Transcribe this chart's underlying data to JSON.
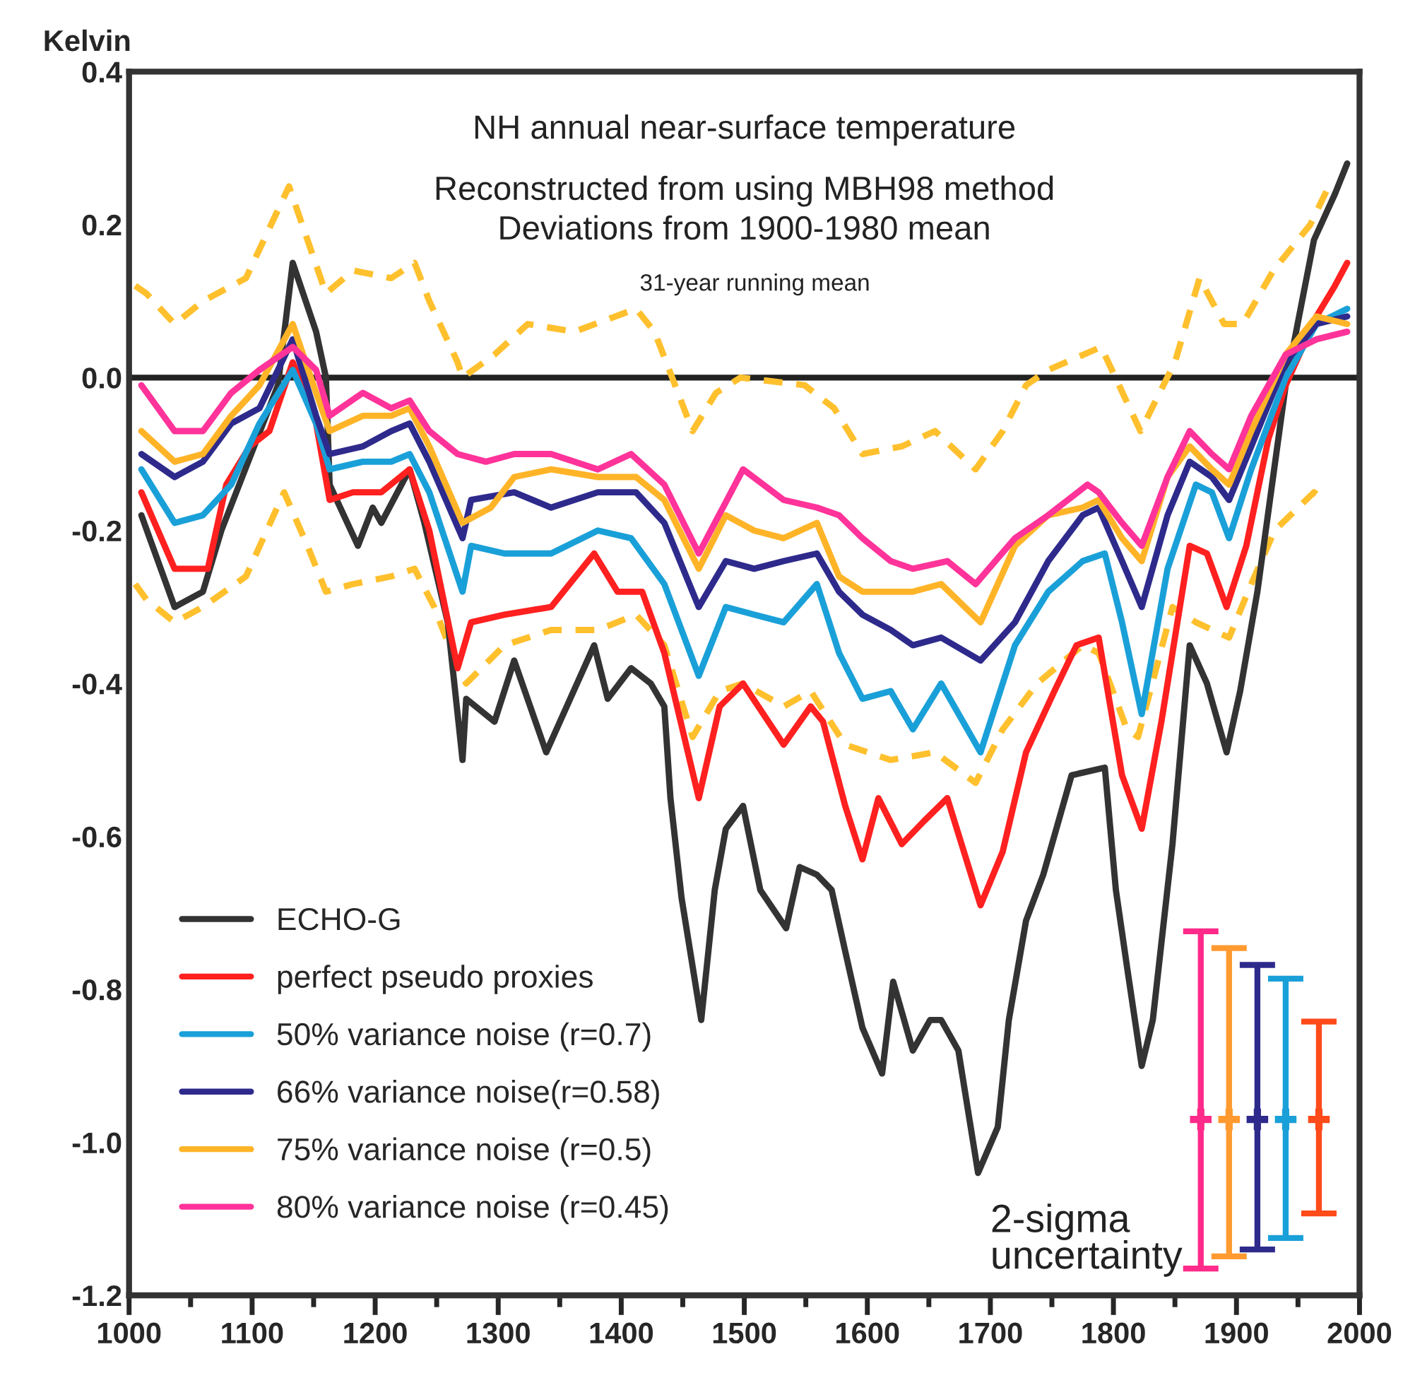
{
  "chart_data": {
    "type": "line",
    "title": "NH annual near-surface temperature",
    "subtitle": "Reconstructed from using MBH98 method\nDeviations from 1900-1980 mean",
    "ylabel": "Kelvin",
    "annotations": [
      "31-year running mean",
      "2-sigma\nuncertainty"
    ],
    "xlim": [
      1000,
      2000
    ],
    "ylim": [
      -1.2,
      0.4
    ],
    "xticks": [
      1000,
      {
        "value": 1050,
        "label": null
      },
      1100,
      {
        "value": 1150,
        "label": null
      },
      1200,
      {
        "value": 1250,
        "label": null
      },
      1300,
      {
        "value": 1350,
        "label": null
      },
      1400,
      {
        "value": 1450,
        "label": null
      },
      1500,
      {
        "value": 1550,
        "label": null
      },
      1600,
      {
        "value": 1650,
        "label": null
      },
      1700,
      {
        "value": 1750,
        "label": null
      },
      1800,
      {
        "value": 1850,
        "label": null
      },
      1900,
      {
        "value": 1950,
        "label": null
      },
      2000
    ],
    "yticks": [
      {
        "value": -1.2,
        "label": "-1.2"
      },
      {
        "value": -1.0,
        "label": "-1.0"
      },
      {
        "value": -0.8,
        "label": "-0.8"
      },
      {
        "value": -0.6,
        "label": "-0.6"
      },
      {
        "value": -0.4,
        "label": "-0.4"
      },
      {
        "value": -0.2,
        "label": "-0.2"
      },
      {
        "value": 0.0,
        "label": "0.0"
      },
      0.2,
      0.4
    ],
    "ref_lines": [
      {
        "axis": "y",
        "value": 0,
        "color": "#222222",
        "line_style": "solid"
      }
    ],
    "grid": false,
    "legend": "bottom left",
    "line_style": "solid",
    "marker": "none",
    "series": [
      {
        "color": "#ffc02e",
        "line_style": "dashed",
        "x": [
          1005,
          1014,
          1037,
          1060,
          1095,
          1130,
          1145,
          1160,
          1182,
          1213,
          1232,
          1244,
          1267,
          1271,
          1297,
          1324,
          1362,
          1412,
          1427,
          1439,
          1458,
          1477,
          1497,
          1549,
          1573,
          1596,
          1628,
          1655,
          1688,
          1710,
          1729,
          1747,
          1790,
          1822,
          1850,
          1870,
          1890,
          1905,
          1930,
          1960,
          1975
        ],
        "values": [
          0.12,
          0.11,
          0.07,
          0.1,
          0.13,
          0.25,
          0.18,
          0.11,
          0.14,
          0.13,
          0.15,
          0.1,
          0.02,
          0.0,
          0.03,
          0.07,
          0.06,
          0.09,
          0.06,
          0.01,
          -0.07,
          -0.02,
          0.0,
          -0.01,
          -0.04,
          -0.1,
          -0.09,
          -0.07,
          -0.12,
          -0.07,
          -0.01,
          0.01,
          0.04,
          -0.07,
          0.02,
          0.13,
          0.07,
          0.07,
          0.14,
          0.2,
          0.25
        ]
      },
      {
        "color": "#ffc02e",
        "line_style": "dashed",
        "x": [
          1005,
          1014,
          1037,
          1060,
          1095,
          1126,
          1145,
          1160,
          1182,
          1213,
          1232,
          1248,
          1267,
          1274,
          1305,
          1343,
          1381,
          1412,
          1435,
          1458,
          1480,
          1499,
          1532,
          1554,
          1582,
          1619,
          1655,
          1688,
          1710,
          1738,
          1775,
          1788,
          1811,
          1820,
          1848,
          1867,
          1894,
          1912,
          1931,
          1963,
          1972
        ],
        "values": [
          -0.27,
          -0.29,
          -0.32,
          -0.3,
          -0.26,
          -0.15,
          -0.22,
          -0.28,
          -0.27,
          -0.26,
          -0.25,
          -0.3,
          -0.38,
          -0.4,
          -0.35,
          -0.33,
          -0.33,
          -0.31,
          -0.35,
          -0.47,
          -0.41,
          -0.4,
          -0.43,
          -0.41,
          -0.48,
          -0.5,
          -0.49,
          -0.53,
          -0.46,
          -0.4,
          -0.35,
          -0.36,
          -0.46,
          -0.47,
          -0.3,
          -0.32,
          -0.34,
          -0.27,
          -0.2,
          -0.15,
          -0.16
        ]
      },
      {
        "name": "ECHO-G",
        "color": "#333333",
        "x": [
          1010,
          1037,
          1060,
          1075,
          1121,
          1133,
          1152,
          1160,
          1163,
          1186,
          1198,
          1205,
          1228,
          1240,
          1259,
          1271,
          1274,
          1297,
          1313,
          1339,
          1378,
          1389,
          1408,
          1424,
          1435,
          1440,
          1449,
          1465,
          1476,
          1485,
          1499,
          1513,
          1534,
          1545,
          1559,
          1571,
          1582,
          1596,
          1612,
          1621,
          1637,
          1651,
          1660,
          1674,
          1690,
          1706,
          1715,
          1729,
          1743,
          1766,
          1793,
          1802,
          1811,
          1823,
          1832,
          1848,
          1862,
          1876,
          1892,
          1903,
          1917,
          1940,
          1963,
          1980,
          1990
        ],
        "values": [
          -0.18,
          -0.3,
          -0.28,
          -0.2,
          -0.01,
          0.15,
          0.06,
          0.0,
          -0.14,
          -0.22,
          -0.17,
          -0.19,
          -0.12,
          -0.19,
          -0.32,
          -0.5,
          -0.42,
          -0.45,
          -0.37,
          -0.49,
          -0.35,
          -0.42,
          -0.38,
          -0.4,
          -0.43,
          -0.55,
          -0.68,
          -0.84,
          -0.67,
          -0.59,
          -0.56,
          -0.67,
          -0.72,
          -0.64,
          -0.65,
          -0.67,
          -0.75,
          -0.85,
          -0.91,
          -0.79,
          -0.88,
          -0.84,
          -0.84,
          -0.88,
          -1.04,
          -0.98,
          -0.84,
          -0.71,
          -0.65,
          -0.52,
          -0.51,
          -0.67,
          -0.77,
          -0.9,
          -0.84,
          -0.61,
          -0.35,
          -0.4,
          -0.49,
          -0.41,
          -0.28,
          -0.01,
          0.18,
          0.24,
          0.28
        ]
      },
      {
        "name": "perfect pseudo proxies",
        "color": "#ff2020",
        "x": [
          1010,
          1037,
          1064,
          1079,
          1098,
          1114,
          1133,
          1152,
          1163,
          1182,
          1205,
          1228,
          1244,
          1267,
          1278,
          1305,
          1343,
          1378,
          1397,
          1417,
          1435,
          1463,
          1480,
          1499,
          1532,
          1554,
          1564,
          1582,
          1596,
          1609,
          1628,
          1646,
          1665,
          1692,
          1710,
          1729,
          1752,
          1770,
          1788,
          1807,
          1823,
          1839,
          1862,
          1876,
          1892,
          1908,
          1926,
          1940,
          1965,
          1980,
          1990
        ],
        "values": [
          -0.15,
          -0.25,
          -0.25,
          -0.14,
          -0.09,
          -0.07,
          0.02,
          -0.06,
          -0.16,
          -0.15,
          -0.15,
          -0.12,
          -0.2,
          -0.38,
          -0.32,
          -0.31,
          -0.3,
          -0.23,
          -0.28,
          -0.28,
          -0.36,
          -0.55,
          -0.43,
          -0.4,
          -0.48,
          -0.43,
          -0.45,
          -0.56,
          -0.63,
          -0.55,
          -0.61,
          -0.58,
          -0.55,
          -0.69,
          -0.62,
          -0.49,
          -0.41,
          -0.35,
          -0.34,
          -0.52,
          -0.59,
          -0.45,
          -0.22,
          -0.23,
          -0.3,
          -0.22,
          -0.08,
          -0.01,
          0.08,
          0.12,
          0.15
        ]
      },
      {
        "name": "50% variance noise (r=0.7)",
        "color": "#1aa0d8",
        "x": [
          1010,
          1037,
          1060,
          1083,
          1106,
          1133,
          1152,
          1163,
          1190,
          1213,
          1228,
          1244,
          1271,
          1278,
          1305,
          1343,
          1381,
          1408,
          1435,
          1463,
          1485,
          1508,
          1532,
          1559,
          1577,
          1596,
          1619,
          1637,
          1660,
          1692,
          1720,
          1747,
          1775,
          1793,
          1807,
          1823,
          1844,
          1867,
          1880,
          1894,
          1912,
          1940,
          1965,
          1990
        ],
        "values": [
          -0.12,
          -0.19,
          -0.18,
          -0.14,
          -0.06,
          0.01,
          -0.06,
          -0.12,
          -0.11,
          -0.11,
          -0.1,
          -0.15,
          -0.28,
          -0.22,
          -0.23,
          -0.23,
          -0.2,
          -0.21,
          -0.27,
          -0.39,
          -0.3,
          -0.31,
          -0.32,
          -0.27,
          -0.36,
          -0.42,
          -0.41,
          -0.46,
          -0.4,
          -0.49,
          -0.35,
          -0.28,
          -0.24,
          -0.23,
          -0.32,
          -0.44,
          -0.25,
          -0.14,
          -0.15,
          -0.21,
          -0.12,
          0.0,
          0.07,
          0.09
        ]
      },
      {
        "name": "66% variance noise(r=0.58)",
        "color": "#2e2a8c",
        "x": [
          1010,
          1037,
          1060,
          1083,
          1106,
          1133,
          1152,
          1163,
          1190,
          1213,
          1228,
          1244,
          1271,
          1278,
          1313,
          1343,
          1381,
          1412,
          1435,
          1463,
          1485,
          1508,
          1532,
          1559,
          1577,
          1596,
          1619,
          1637,
          1660,
          1692,
          1720,
          1747,
          1775,
          1788,
          1807,
          1823,
          1844,
          1862,
          1880,
          1894,
          1912,
          1940,
          1965,
          1990
        ],
        "values": [
          -0.1,
          -0.13,
          -0.11,
          -0.06,
          -0.04,
          0.05,
          -0.05,
          -0.1,
          -0.09,
          -0.07,
          -0.06,
          -0.11,
          -0.21,
          -0.16,
          -0.15,
          -0.17,
          -0.15,
          -0.15,
          -0.19,
          -0.3,
          -0.24,
          -0.25,
          -0.24,
          -0.23,
          -0.28,
          -0.31,
          -0.33,
          -0.35,
          -0.34,
          -0.37,
          -0.32,
          -0.24,
          -0.18,
          -0.17,
          -0.24,
          -0.3,
          -0.18,
          -0.11,
          -0.13,
          -0.16,
          -0.09,
          0.02,
          0.07,
          0.08
        ]
      },
      {
        "name": "75% variance noise (r=0.5)",
        "color": "#ffb428",
        "x": [
          1010,
          1037,
          1060,
          1083,
          1106,
          1133,
          1152,
          1163,
          1190,
          1213,
          1228,
          1244,
          1271,
          1294,
          1313,
          1343,
          1381,
          1412,
          1435,
          1463,
          1485,
          1508,
          1532,
          1559,
          1577,
          1596,
          1619,
          1637,
          1660,
          1692,
          1720,
          1747,
          1775,
          1788,
          1807,
          1823,
          1844,
          1862,
          1880,
          1894,
          1912,
          1940,
          1965,
          1990
        ],
        "values": [
          -0.07,
          -0.11,
          -0.1,
          -0.05,
          -0.01,
          0.07,
          -0.02,
          -0.07,
          -0.05,
          -0.05,
          -0.04,
          -0.09,
          -0.19,
          -0.17,
          -0.13,
          -0.12,
          -0.13,
          -0.13,
          -0.16,
          -0.25,
          -0.18,
          -0.2,
          -0.21,
          -0.19,
          -0.26,
          -0.28,
          -0.28,
          -0.28,
          -0.27,
          -0.32,
          -0.22,
          -0.18,
          -0.17,
          -0.16,
          -0.21,
          -0.24,
          -0.13,
          -0.09,
          -0.12,
          -0.14,
          -0.07,
          0.03,
          0.08,
          0.07
        ]
      },
      {
        "name": "80% variance noise (r=0.45)",
        "color": "#ff3399",
        "x": [
          1010,
          1037,
          1060,
          1083,
          1106,
          1133,
          1152,
          1163,
          1190,
          1213,
          1228,
          1244,
          1267,
          1290,
          1313,
          1343,
          1381,
          1408,
          1435,
          1463,
          1499,
          1532,
          1559,
          1577,
          1596,
          1619,
          1637,
          1665,
          1688,
          1720,
          1747,
          1779,
          1788,
          1807,
          1823,
          1844,
          1862,
          1880,
          1894,
          1912,
          1940,
          1965,
          1990
        ],
        "values": [
          -0.01,
          -0.07,
          -0.07,
          -0.02,
          0.01,
          0.04,
          0.01,
          -0.05,
          -0.02,
          -0.04,
          -0.03,
          -0.07,
          -0.1,
          -0.11,
          -0.1,
          -0.1,
          -0.12,
          -0.1,
          -0.14,
          -0.23,
          -0.12,
          -0.16,
          -0.17,
          -0.18,
          -0.21,
          -0.24,
          -0.25,
          -0.24,
          -0.27,
          -0.21,
          -0.18,
          -0.14,
          -0.15,
          -0.19,
          -0.22,
          -0.13,
          -0.07,
          -0.1,
          -0.12,
          -0.05,
          0.03,
          0.05,
          0.06
        ]
      },
      {
        "type": "scatter",
        "marker": "cross",
        "color": "#ff2a8a",
        "x": [
          1871
        ],
        "values": [
          -0.97
        ],
        "errors": [
          [
            -1.165,
            -0.724
          ]
        ]
      },
      {
        "type": "scatter",
        "marker": "cross",
        "color": "#ff9a30",
        "x": [
          1894
        ],
        "values": [
          -0.97
        ],
        "errors": [
          [
            -1.149,
            -0.746
          ]
        ]
      },
      {
        "type": "scatter",
        "marker": "cross",
        "color": "#2e2a8c",
        "x": [
          1917
        ],
        "values": [
          -0.97
        ],
        "errors": [
          [
            -1.14,
            -0.768
          ]
        ]
      },
      {
        "type": "scatter",
        "marker": "cross",
        "color": "#1aa0d8",
        "x": [
          1940
        ],
        "values": [
          -0.97
        ],
        "errors": [
          [
            -1.125,
            -0.786
          ]
        ]
      },
      {
        "type": "scatter",
        "marker": "cross",
        "color": "#ff4a1a",
        "x": [
          1967
        ],
        "values": [
          -0.97
        ],
        "errors": [
          [
            -1.093,
            -0.842
          ]
        ]
      }
    ]
  }
}
